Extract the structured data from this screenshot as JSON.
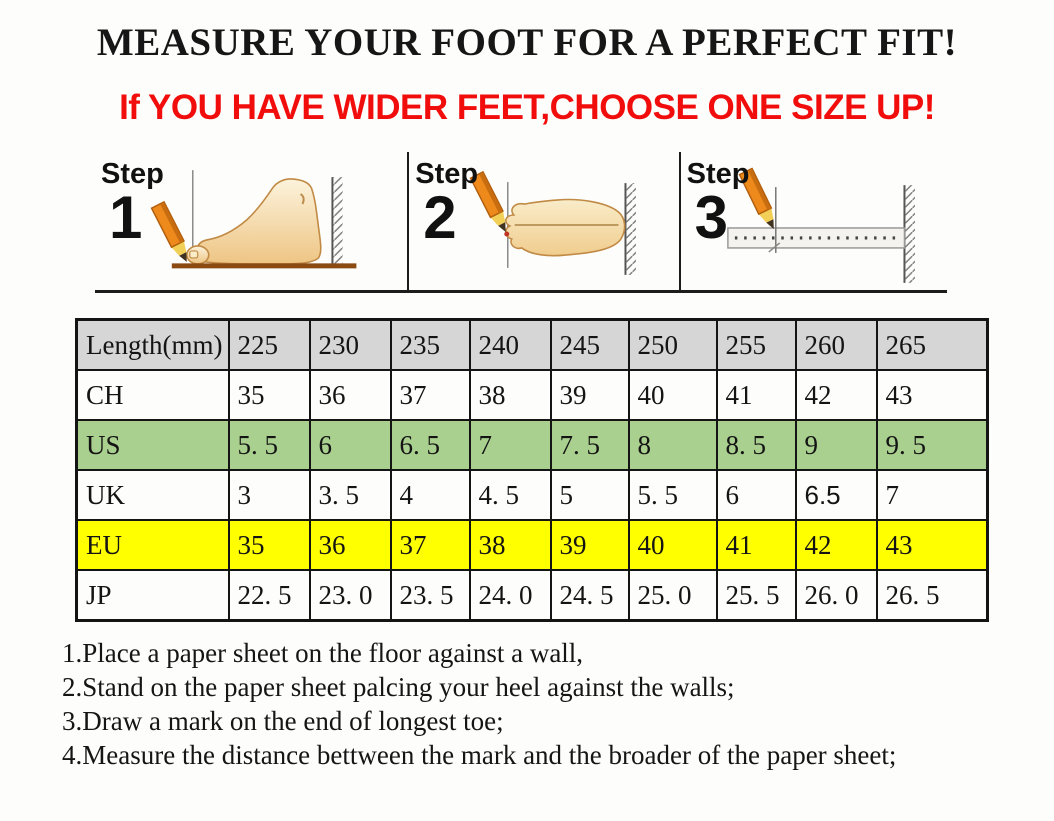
{
  "title": "MEASURE YOUR FOOT FOR A PERFECT FIT!",
  "subtitle": "If YOU HAVE WIDER FEET,CHOOSE ONE SIZE UP!",
  "steps": [
    {
      "label": "Step",
      "number": "1",
      "illustration": "foot-side-view"
    },
    {
      "label": "Step",
      "number": "2",
      "illustration": "foot-top-view"
    },
    {
      "label": "Step",
      "number": "3",
      "illustration": "ruler-measure"
    }
  ],
  "size_table": {
    "rows": [
      {
        "label": "Length(mm)",
        "bg": "#d6d6d6",
        "values": [
          "225",
          "230",
          "235",
          "240",
          "245",
          "250",
          "255",
          "260",
          "265"
        ]
      },
      {
        "label": "CH",
        "bg": "#fdfdfb",
        "values": [
          "35",
          "36",
          "37",
          "38",
          "39",
          "40",
          "41",
          "42",
          "43"
        ]
      },
      {
        "label": "US",
        "bg": "#a9d08e",
        "values": [
          "5. 5",
          "6",
          "6. 5",
          "7",
          "7. 5",
          "8",
          "8. 5",
          "9",
          "9. 5"
        ]
      },
      {
        "label": "UK",
        "bg": "#fdfdfb",
        "values": [
          "3",
          "3. 5",
          "4",
          "4. 5",
          "5",
          "5. 5",
          "6",
          "6.5",
          "7"
        ],
        "alt_cells": [
          7
        ]
      },
      {
        "label": "EU",
        "bg": "#ffff00",
        "values": [
          "35",
          "36",
          "37",
          "38",
          "39",
          "40",
          "41",
          "42",
          "43"
        ]
      },
      {
        "label": "JP",
        "bg": "#fdfdfb",
        "values": [
          "22. 5",
          "23. 0",
          "23. 5",
          "24. 0",
          "24. 5",
          "25. 0",
          "25. 5",
          "26. 0",
          "26. 5"
        ]
      }
    ]
  },
  "instructions": [
    "1.Place a paper sheet on the floor against a wall,",
    "2.Stand on the paper sheet palcing your heel against the walls;",
    "3.Draw a mark on the end of longest toe;",
    "4.Measure the distance bettween the mark and the broader of the paper sheet;"
  ],
  "colors": {
    "warning_red": "#f20d0d",
    "header_row_bg": "#d6d6d6",
    "us_row_green": "#a9d08e",
    "eu_row_yellow": "#ffff00",
    "table_border": "#141414",
    "pencil_orange": "#ee8a1c",
    "foot_skin": "#f7e3b6",
    "floor_brown": "#8a4a12"
  }
}
